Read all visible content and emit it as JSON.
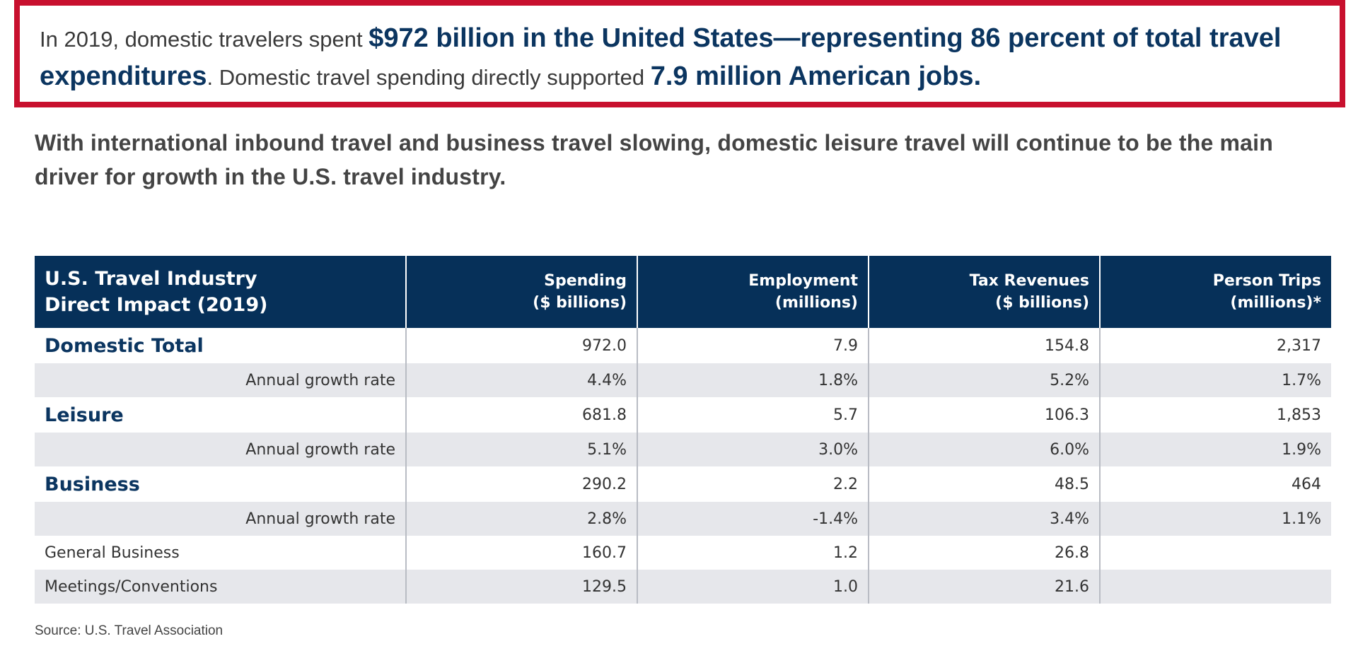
{
  "callout": {
    "p1": "In 2019, domestic travelers spent ",
    "h1": "$972 billion in the United States—representing 86 percent of total travel expenditures",
    "p2": ". Domestic travel spending directly supported ",
    "h2": "7.9 million American jobs."
  },
  "lead": "With international inbound travel and business travel slowing, domestic leisure travel will continue to be the main driver for growth in the U.S. travel industry.",
  "chart_data": {
    "type": "table",
    "title": [
      "U.S. Travel Industry",
      "Direct Impact (2019)"
    ],
    "columns": [
      [
        "Spending",
        "($ billions)"
      ],
      [
        "Employment",
        "(millions)"
      ],
      [
        "Tax Revenues",
        "($ billions)"
      ],
      [
        "Person Trips",
        "(millions)*"
      ]
    ],
    "rows": [
      {
        "label": "Domestic Total",
        "kind": "cat",
        "values": [
          "972.0",
          "7.9",
          "154.8",
          "2,317"
        ]
      },
      {
        "label": "Annual growth rate",
        "kind": "growth",
        "values": [
          "4.4%",
          "1.8%",
          "5.2%",
          "1.7%"
        ]
      },
      {
        "label": "Leisure",
        "kind": "cat",
        "values": [
          "681.8",
          "5.7",
          "106.3",
          "1,853"
        ]
      },
      {
        "label": "Annual growth rate",
        "kind": "growth",
        "values": [
          "5.1%",
          "3.0%",
          "6.0%",
          "1.9%"
        ]
      },
      {
        "label": "Business",
        "kind": "cat",
        "values": [
          "290.2",
          "2.2",
          "48.5",
          "464"
        ]
      },
      {
        "label": "Annual growth rate",
        "kind": "growth",
        "values": [
          "2.8%",
          "-1.4%",
          "3.4%",
          "1.1%"
        ]
      },
      {
        "label": "General Business",
        "kind": "sub",
        "values": [
          "160.7",
          "1.2",
          "26.8",
          ""
        ]
      },
      {
        "label": "Meetings/Conventions",
        "kind": "sub shade",
        "values": [
          "129.5",
          "1.0",
          "21.6",
          ""
        ]
      }
    ]
  },
  "source": "Source: U.S. Travel Association",
  "colors": {
    "navy": "#063059",
    "red_border": "#c8102e",
    "highlight_text": "#0b3560",
    "row_shade": "#e6e7eb"
  }
}
